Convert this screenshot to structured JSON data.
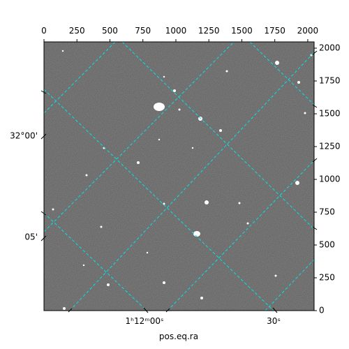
{
  "chart_data": {
    "type": "image",
    "xlabel": "pos.eq.ra",
    "xlim": [
      0,
      2048
    ],
    "xticks": [
      0,
      250,
      500,
      750,
      1000,
      1250,
      1500,
      1750,
      2000
    ],
    "ylim": [
      0,
      2048
    ],
    "yticks": [
      0,
      250,
      500,
      750,
      1000,
      1250,
      1500,
      1750,
      2000
    ],
    "ra_labels": [
      "1ʰ12ᵐ00ˢ",
      "30ˢ"
    ],
    "dec_labels": [
      "32°00'",
      "05'"
    ],
    "grid_color": "#00e5e5"
  }
}
